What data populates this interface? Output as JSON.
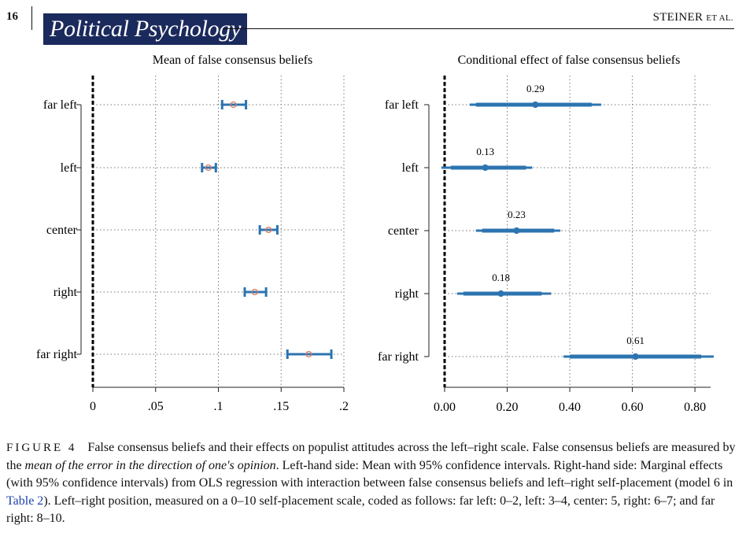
{
  "header": {
    "page_number": "16",
    "journal": "Political Psychology",
    "author": "STEINER",
    "author_suffix": "ET AL."
  },
  "colors": {
    "journal_banner": "#1b2a5c",
    "series": "#2c74b0",
    "point_marker": "#e07a5f",
    "link": "#1f3fae"
  },
  "chart_data": [
    {
      "type": "scatter",
      "title": "Mean of false consensus beliefs",
      "categories": [
        "far left",
        "left",
        "center",
        "right",
        "far right"
      ],
      "xlim": [
        0,
        0.2
      ],
      "xticks": [
        0,
        0.05,
        0.1,
        0.15,
        0.2
      ],
      "xtick_labels": [
        "0",
        ".05",
        ".1",
        ".15",
        ".2"
      ],
      "reference_line": 0,
      "grid": true,
      "series": [
        {
          "values": [
            0.112,
            0.092,
            0.14,
            0.129,
            0.172
          ],
          "ci_low": [
            0.103,
            0.087,
            0.133,
            0.121,
            0.155
          ],
          "ci_high": [
            0.122,
            0.098,
            0.147,
            0.138,
            0.19
          ]
        }
      ]
    },
    {
      "type": "scatter",
      "title": "Conditional effect of false consensus beliefs",
      "categories": [
        "far left",
        "left",
        "center",
        "right",
        "far right"
      ],
      "xlim": [
        0,
        0.85
      ],
      "xticks": [
        0,
        0.2,
        0.4,
        0.6,
        0.8
      ],
      "xtick_labels": [
        "0.00",
        "0.20",
        "0.40",
        "0.60",
        "0.80"
      ],
      "reference_line": 0,
      "grid": true,
      "series": [
        {
          "values": [
            0.29,
            0.13,
            0.23,
            0.18,
            0.61
          ],
          "value_labels": [
            "0.29",
            "0.13",
            "0.23",
            "0.18",
            "0.61"
          ],
          "ci_inner_low": [
            0.1,
            0.02,
            0.12,
            0.06,
            0.4
          ],
          "ci_inner_high": [
            0.47,
            0.26,
            0.35,
            0.31,
            0.82
          ],
          "ci_low": [
            0.08,
            -0.01,
            0.1,
            0.04,
            0.38
          ],
          "ci_high": [
            0.5,
            0.28,
            0.37,
            0.34,
            0.86
          ]
        }
      ]
    }
  ],
  "caption": {
    "label": "FIGURE 4",
    "text_1": "False consensus beliefs and their effects on populist attitudes across the left–right scale. False consensus beliefs are measured by the ",
    "text_italic": "mean of the error in the direction of one's opinion",
    "text_2": ". Left-hand side: Mean with 95% confidence intervals. Right-hand side: Marginal effects (with 95% confidence intervals) from OLS regression with interaction between false consensus beliefs and left–right self-placement (model 6 in ",
    "link": "Table 2",
    "text_3": "). Left–right position, measured on a 0–10 self-placement scale, coded as follows: far left: 0–2, left: 3–4, center: 5, right: 6–7; and far right: 8–10."
  }
}
